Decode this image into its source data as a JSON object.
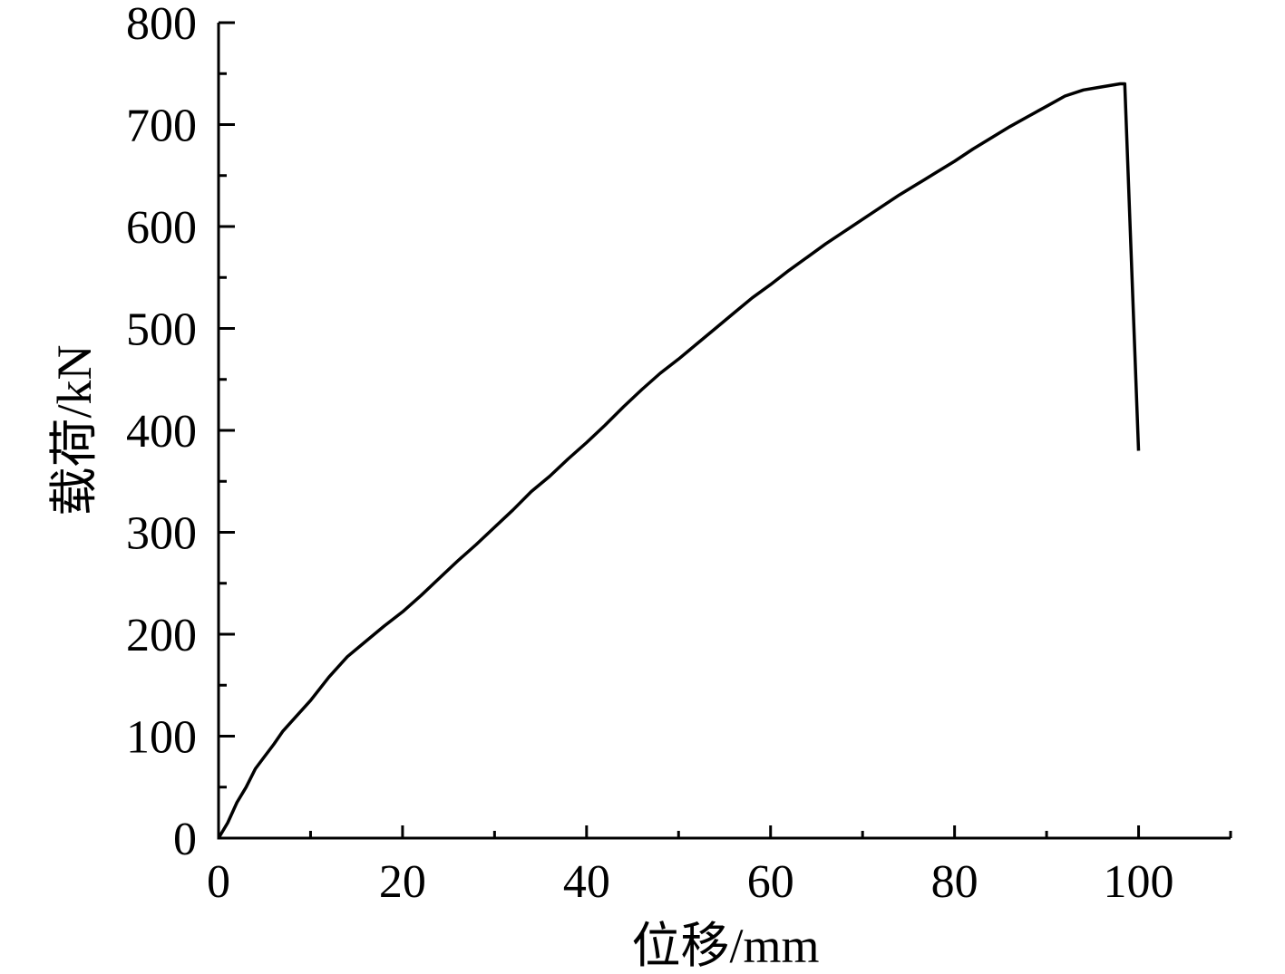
{
  "chart_data": {
    "type": "line",
    "title": "",
    "xlabel": "位移/mm",
    "ylabel": "载荷/kN",
    "xlim": [
      0,
      110
    ],
    "ylim": [
      0,
      800
    ],
    "x_ticks": [
      0,
      20,
      40,
      60,
      80,
      100
    ],
    "y_ticks": [
      0,
      100,
      200,
      300,
      400,
      500,
      600,
      700,
      800
    ],
    "x_minor_step": 10,
    "y_minor_step": 50,
    "grid": false,
    "legend": "none",
    "line_color": "#000000",
    "series": [
      {
        "x": [
          0,
          1,
          2,
          3,
          4,
          5,
          6,
          7,
          8,
          10,
          12,
          14,
          16,
          18,
          20,
          22,
          24,
          26,
          28,
          30,
          32,
          34,
          36,
          38,
          40,
          42,
          44,
          46,
          48,
          50,
          52,
          54,
          56,
          58,
          60,
          62,
          64,
          66,
          68,
          70,
          72,
          74,
          76,
          78,
          80,
          82,
          84,
          86,
          88,
          90,
          92,
          94,
          96,
          98,
          98.5,
          100
        ],
        "y": [
          0,
          15,
          35,
          50,
          68,
          80,
          92,
          105,
          115,
          135,
          158,
          178,
          193,
          208,
          222,
          238,
          255,
          272,
          288,
          305,
          322,
          340,
          355,
          372,
          388,
          405,
          423,
          440,
          456,
          470,
          485,
          500,
          515,
          530,
          543,
          557,
          570,
          583,
          595,
          607,
          619,
          631,
          642,
          653,
          664,
          676,
          687,
          698,
          708,
          718,
          728,
          734,
          737,
          740,
          740,
          380
        ]
      }
    ]
  }
}
